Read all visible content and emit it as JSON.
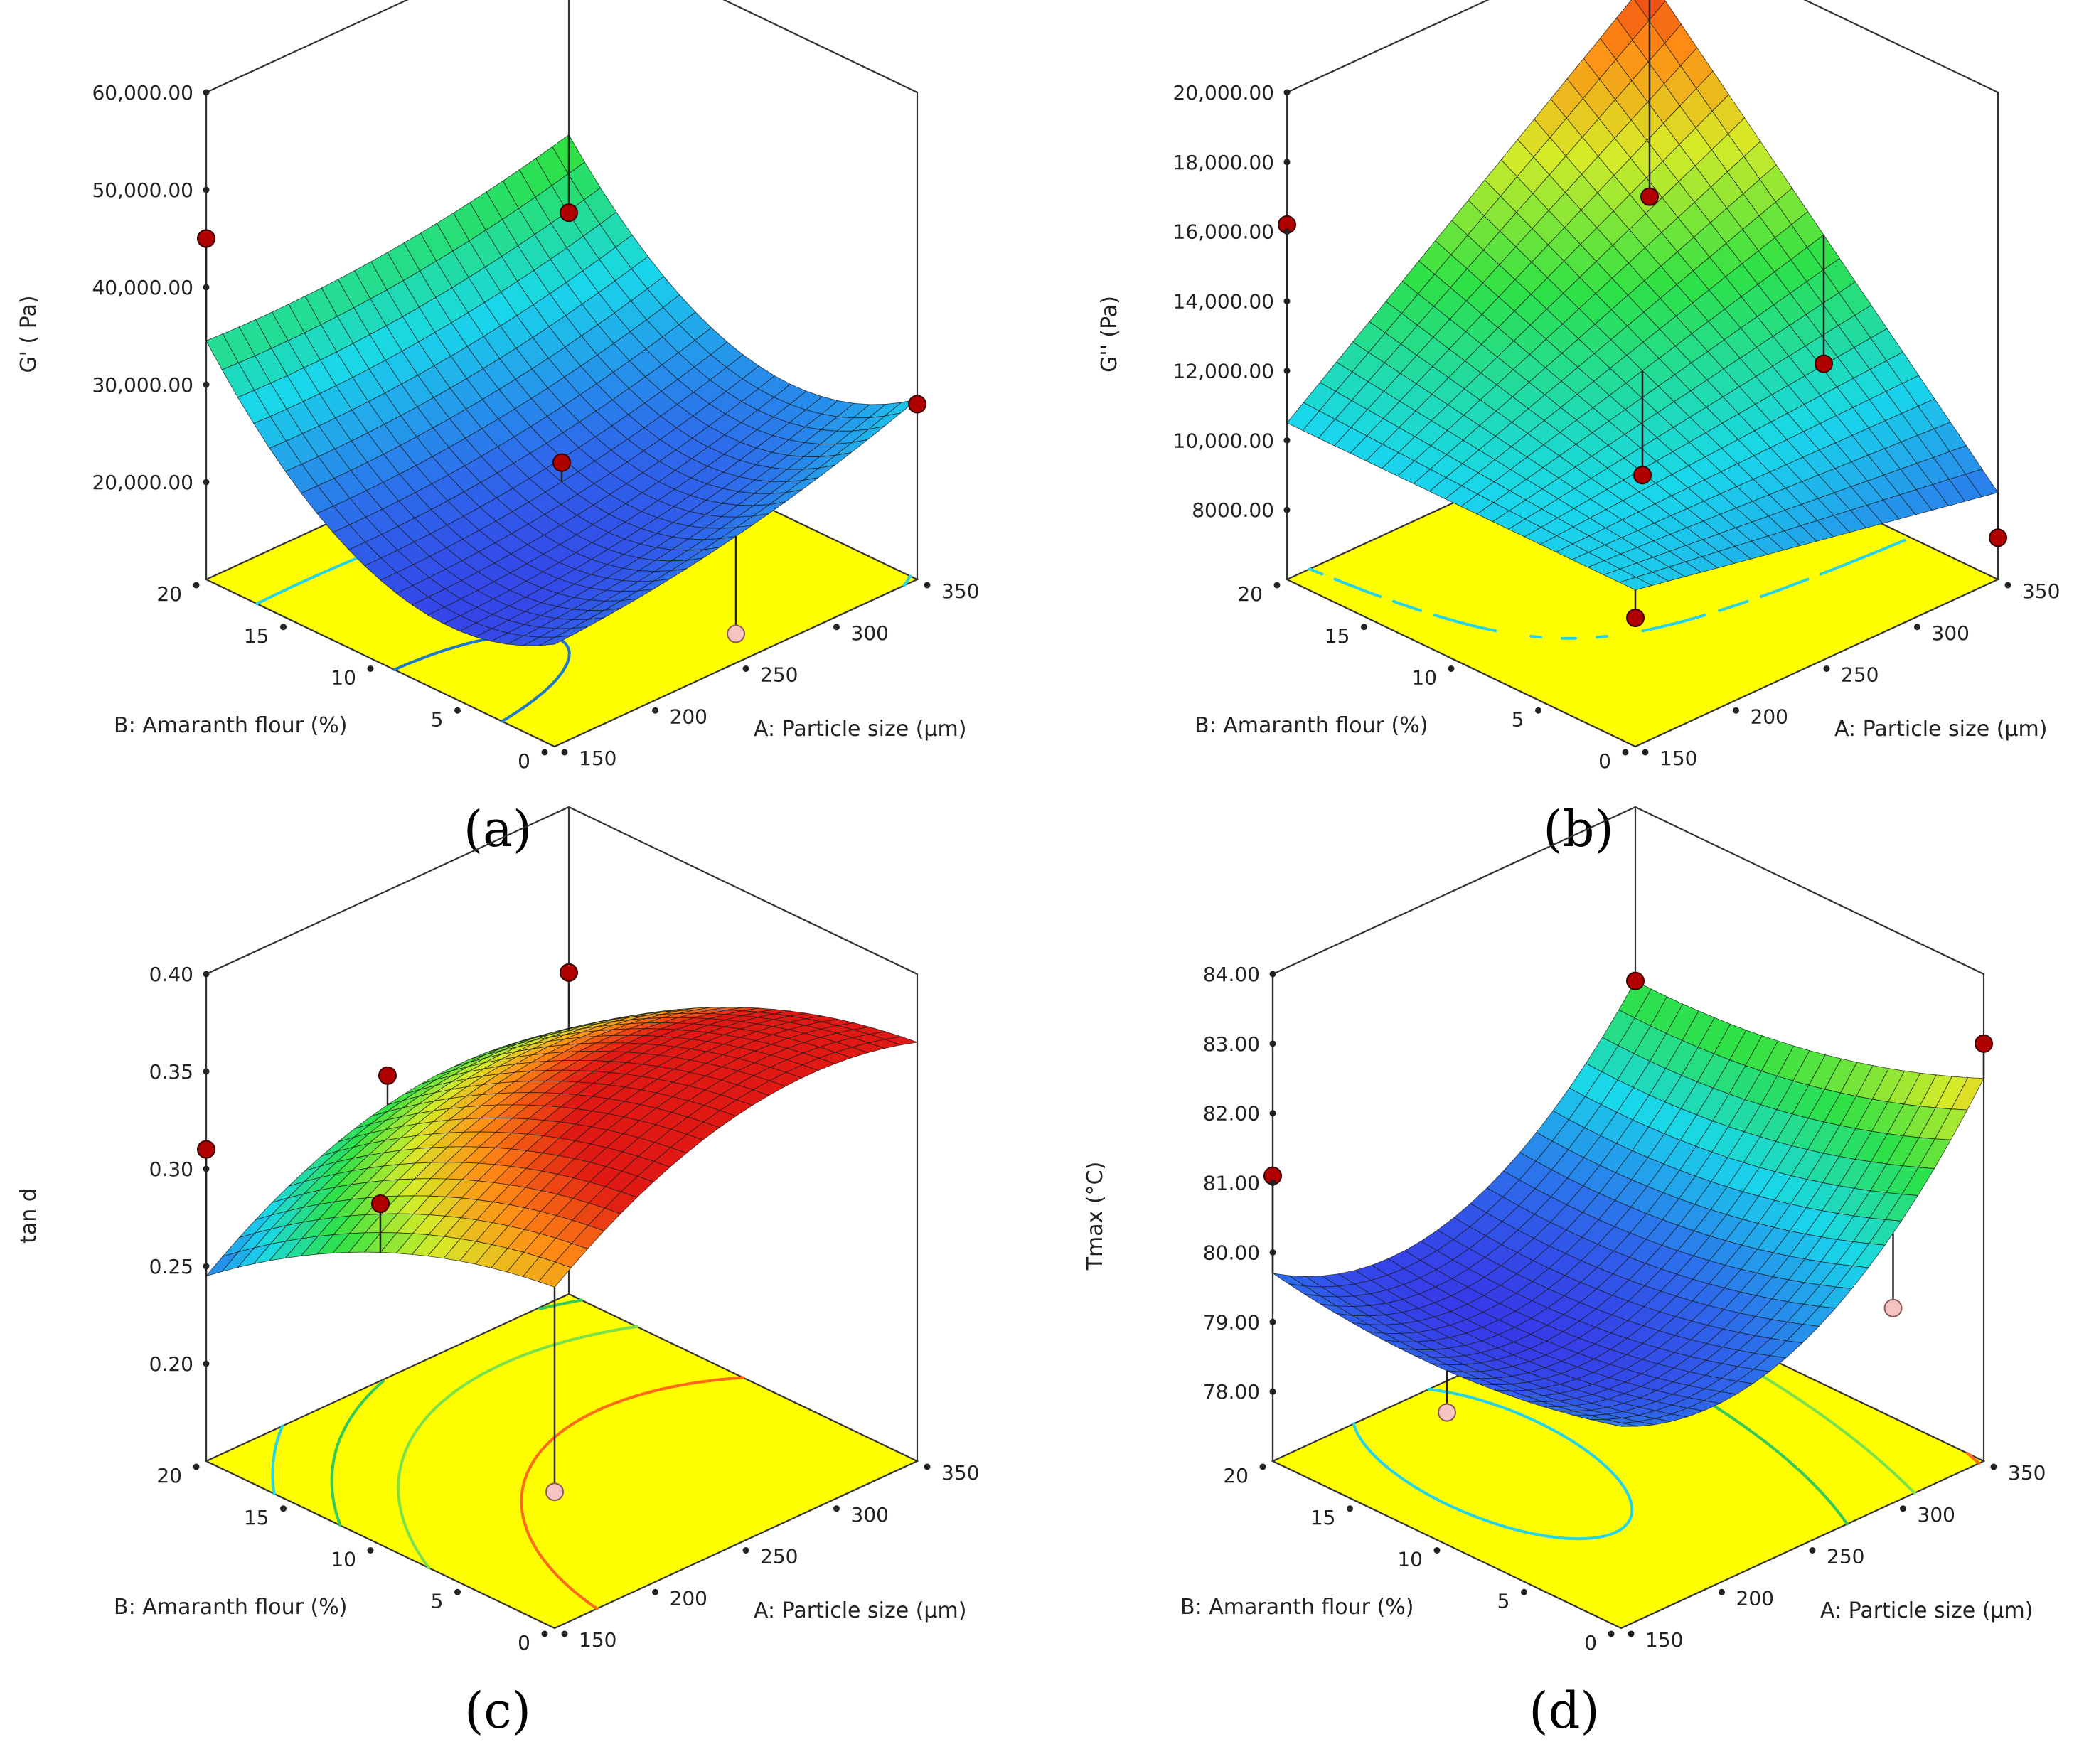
{
  "figure": {
    "note": "Response surface plots with contour projections"
  },
  "chart_data": [
    {
      "id": "a",
      "type": "surface3d",
      "panel_label": "(a)",
      "zlabel": "G' ( Pa)",
      "xlabel": "A: Particle size (μm)",
      "ylabel": "B: Amaranth flour (%)",
      "x_range": [
        150,
        350
      ],
      "y_range": [
        0,
        20
      ],
      "z_range": [
        10000,
        60000
      ],
      "x_ticks": [
        "150",
        "200",
        "250",
        "300",
        "350"
      ],
      "y_ticks": [
        "0",
        "5",
        "10",
        "15",
        "20"
      ],
      "z_ticks": [
        {
          "label": "20,000.00",
          "value": 20000
        },
        {
          "label": "30,000.00",
          "value": 30000
        },
        {
          "label": "40,000.00",
          "value": 40000
        },
        {
          "label": "50,000.00",
          "value": 50000
        },
        {
          "label": "60,000.00",
          "value": 60000
        }
      ],
      "model": {
        "b0": 20000,
        "b1": 3000,
        "b2": 6000,
        "b11": 1500,
        "b22": 9000,
        "b12": -1000
      },
      "color_min": 14000,
      "color_max": 56000,
      "design_points": [
        {
          "x": 150,
          "y": 20,
          "z": 45000,
          "above": true
        },
        {
          "x": 250,
          "y": 10,
          "z": 22000,
          "above": true
        },
        {
          "x": 350,
          "y": 20,
          "z": 30500,
          "above": true
        },
        {
          "x": 350,
          "y": 0,
          "z": 28000,
          "above": true
        },
        {
          "x": 250,
          "y": 0,
          "z": 13000,
          "above": false
        },
        {
          "x": 350,
          "y": 10,
          "z": 15000,
          "above": false
        }
      ],
      "contours": [
        {
          "level": 18000,
          "color": "#1e7ac8"
        },
        {
          "level": 28000,
          "color": "#27d3e6"
        },
        {
          "level": 38000,
          "color": "#35c957"
        }
      ]
    },
    {
      "id": "b",
      "type": "surface3d",
      "panel_label": "(b)",
      "zlabel": "G'' (Pa)",
      "xlabel": "A: Particle size (μm)",
      "ylabel": "B: Amaranth flour (%)",
      "x_range": [
        150,
        350
      ],
      "y_range": [
        0,
        20
      ],
      "z_range": [
        6000,
        20000
      ],
      "x_ticks": [
        "150",
        "200",
        "250",
        "300",
        "350"
      ],
      "y_ticks": [
        "0",
        "5",
        "10",
        "15",
        "20"
      ],
      "z_ticks": [
        {
          "label": "8000.00",
          "value": 8000
        },
        {
          "label": "10,000.00",
          "value": 10000
        },
        {
          "label": "12,000.00",
          "value": 12000
        },
        {
          "label": "14,000.00",
          "value": 14000
        },
        {
          "label": "16,000.00",
          "value": 16000
        },
        {
          "label": "18,000.00",
          "value": 18000
        },
        {
          "label": "20,000.00",
          "value": 20000
        }
      ],
      "model": {
        "b0": 12000,
        "b1": 1500,
        "b2": 2500,
        "b11": 0,
        "b22": 0,
        "b12": 2500
      },
      "color_min": 6000,
      "color_max": 19000,
      "design_points": [
        {
          "x": 150,
          "y": 20,
          "z": 16200,
          "above": true
        },
        {
          "x": 150,
          "y": 0,
          "z": 9700,
          "above": true
        },
        {
          "x": 250,
          "y": 10,
          "z": 9000,
          "above": true
        },
        {
          "x": 350,
          "y": 20,
          "z": 12200,
          "above": true
        },
        {
          "x": 350,
          "y": 10,
          "z": 9800,
          "above": true
        },
        {
          "x": 350,
          "y": 0,
          "z": 7200,
          "above": true
        }
      ],
      "contours": [
        {
          "level": 8500,
          "color": "#1e7ac8"
        },
        {
          "level": 11000,
          "color": "#27d3e6"
        }
      ]
    },
    {
      "id": "c",
      "type": "surface3d",
      "panel_label": "(c)",
      "zlabel": "tan d",
      "xlabel": "A: Particle size (μm)",
      "ylabel": "B: Amaranth flour (%)",
      "x_range": [
        150,
        350
      ],
      "y_range": [
        0,
        20
      ],
      "z_range": [
        0.15,
        0.4
      ],
      "x_ticks": [
        "150",
        "200",
        "250",
        "300",
        "350"
      ],
      "y_ticks": [
        "0",
        "5",
        "10",
        "15",
        "20"
      ],
      "z_ticks": [
        {
          "label": "0.20",
          "value": 0.2
        },
        {
          "label": "0.25",
          "value": 0.25
        },
        {
          "label": "0.30",
          "value": 0.3
        },
        {
          "label": "0.35",
          "value": 0.35
        },
        {
          "label": "0.40",
          "value": 0.4
        }
      ],
      "model": {
        "b0": 0.345,
        "b1": 0.02,
        "b2": -0.04,
        "b11": -0.025,
        "b22": -0.015,
        "b12": 0.0
      },
      "color_min": 0.22,
      "color_max": 0.35,
      "design_points": [
        {
          "x": 150,
          "y": 20,
          "z": 0.31,
          "above": true
        },
        {
          "x": 250,
          "y": 20,
          "z": 0.305,
          "above": true
        },
        {
          "x": 150,
          "y": 10,
          "z": 0.325,
          "above": true
        },
        {
          "x": 350,
          "y": 20,
          "z": 0.315,
          "above": true
        },
        {
          "x": 150,
          "y": 0,
          "z": 0.22,
          "above": false
        },
        {
          "x": 350,
          "y": 10,
          "z": 0.295,
          "above": false
        }
      ],
      "contours": [
        {
          "level": 0.27,
          "color": "#27d3e6"
        },
        {
          "level": 0.29,
          "color": "#35c957"
        },
        {
          "level": 0.31,
          "color": "#7be04a"
        },
        {
          "level": 0.34,
          "color": "#ff6a1a"
        }
      ]
    },
    {
      "id": "d",
      "type": "surface3d",
      "panel_label": "(d)",
      "zlabel": "Tmax (°C)",
      "xlabel": "A: Particle size (μm)",
      "ylabel": "B: Amaranth flour (%)",
      "x_range": [
        150,
        350
      ],
      "y_range": [
        0,
        20
      ],
      "z_range": [
        77,
        84
      ],
      "x_ticks": [
        "150",
        "200",
        "250",
        "300",
        "350"
      ],
      "y_ticks": [
        "0",
        "5",
        "10",
        "15",
        "20"
      ],
      "z_ticks": [
        {
          "label": "78.00",
          "value": 78
        },
        {
          "label": "79.00",
          "value": 79
        },
        {
          "label": "80.00",
          "value": 80
        },
        {
          "label": "81.00",
          "value": 81
        },
        {
          "label": "82.00",
          "value": 82
        },
        {
          "label": "83.00",
          "value": 83
        },
        {
          "label": "84.00",
          "value": 84
        }
      ],
      "model": {
        "b0": 79.3,
        "b1": 1.1,
        "b2": -0.3,
        "b11": 1.3,
        "b22": 0.3,
        "b12": -0.2
      },
      "color_min": 78.8,
      "color_max": 83.5,
      "design_points": [
        {
          "x": 150,
          "y": 20,
          "z": 81.1,
          "above": true
        },
        {
          "x": 350,
          "y": 20,
          "z": 81.5,
          "above": true
        },
        {
          "x": 350,
          "y": 0,
          "z": 83.0,
          "above": true
        },
        {
          "x": 150,
          "y": 10,
          "z": 78.9,
          "above": false
        },
        {
          "x": 250,
          "y": 10,
          "z": 78.0,
          "above": false
        },
        {
          "x": 250,
          "y": 5,
          "z": 78.9,
          "above": false
        },
        {
          "x": 300,
          "y": 0,
          "z": 79.8,
          "above": false
        }
      ],
      "contours": [
        {
          "level": 79.2,
          "color": "#27d3e6"
        },
        {
          "level": 80.3,
          "color": "#35c957"
        },
        {
          "level": 81.2,
          "color": "#7be04a"
        },
        {
          "level": 82.4,
          "color": "#ff6a1a"
        }
      ]
    }
  ]
}
